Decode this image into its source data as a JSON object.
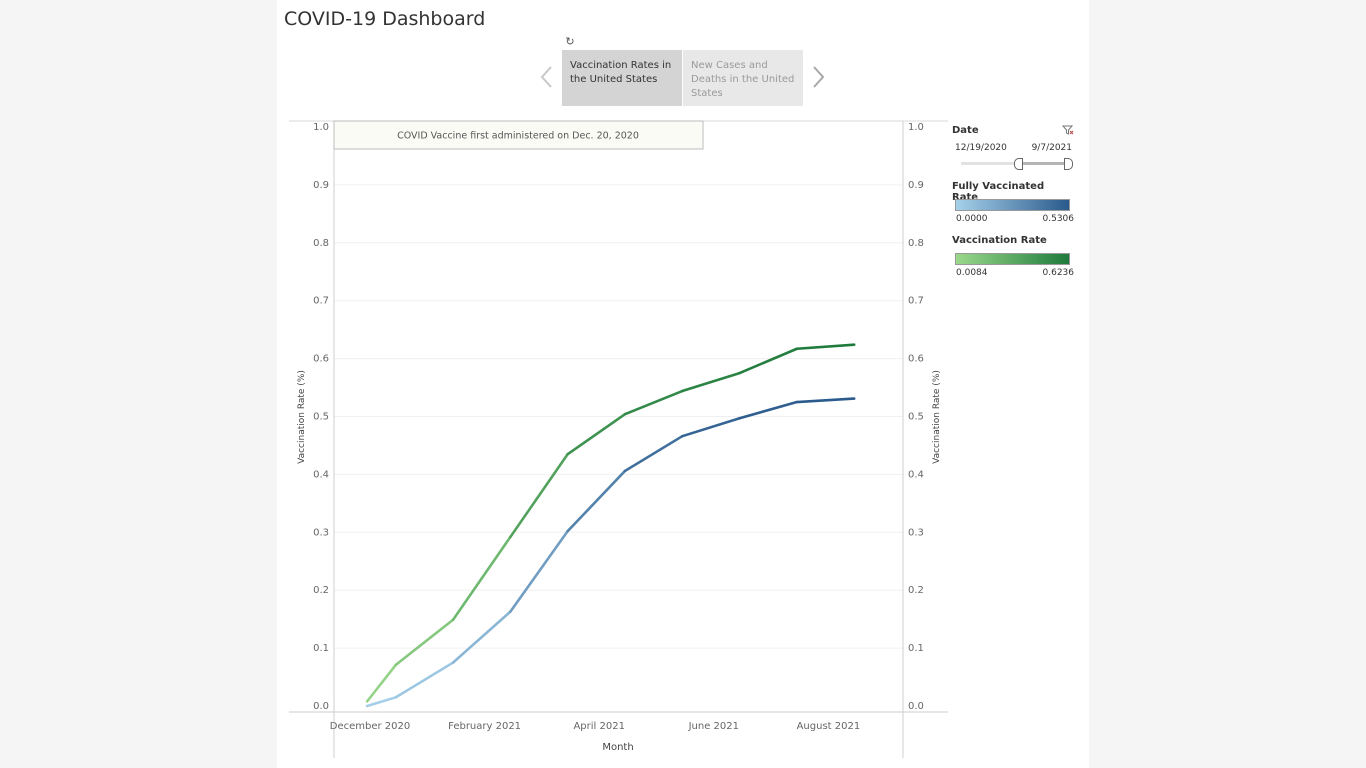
{
  "dashboard": {
    "title": "COVID-19 Dashboard",
    "story_tabs": [
      {
        "label": "Vaccination Rates in the United States",
        "active": true
      },
      {
        "label": "New Cases and Deaths in the United States",
        "active": false
      }
    ],
    "icons": {
      "revert": "revert-icon",
      "prev": "chevron-left-icon",
      "next": "chevron-right-icon",
      "clear_filter": "clear-filter-icon"
    }
  },
  "annotation": "COVID Vaccine first administered on Dec. 20, 2020",
  "filters": {
    "date": {
      "title": "Date",
      "start": "12/19/2020",
      "end": "9/7/2021"
    }
  },
  "legends": {
    "fully_vaccinated": {
      "title": "Fully Vaccinated Rate",
      "min": "0.0000",
      "max": "0.5306",
      "color_low": "#a6d1ea",
      "color_high": "#2a5a8c"
    },
    "vaccination": {
      "title": "Vaccination Rate",
      "min": "0.0084",
      "max": "0.6236",
      "color_low": "#9ad88b",
      "color_high": "#1e7a3c"
    }
  },
  "chart_data": {
    "type": "line",
    "xlabel": "Month",
    "ylabel": "Vaccination Rate (%)",
    "ylabel_right": "Vaccination Rate (%)",
    "ylim": [
      0,
      1.0
    ],
    "y_ticks": [
      "0.0",
      "0.1",
      "0.2",
      "0.3",
      "0.4",
      "0.5",
      "0.6",
      "0.7",
      "0.8",
      "0.9",
      "1.0"
    ],
    "x_ticks": [
      {
        "label": "December 2020",
        "month_index": 0
      },
      {
        "label": "February 2021",
        "month_index": 2
      },
      {
        "label": "April 2021",
        "month_index": 4
      },
      {
        "label": "June 2021",
        "month_index": 6
      },
      {
        "label": "August 2021",
        "month_index": 8
      }
    ],
    "x_months": [
      -0.05,
      0.45,
      1.45,
      2.45,
      3.45,
      4.45,
      5.45,
      6.45,
      7.45,
      8.45,
      8.95
    ],
    "series": [
      {
        "key": "vaccination",
        "values": [
          0.008,
          0.071,
          0.149,
          0.292,
          0.435,
          0.504,
          0.544,
          0.575,
          0.617,
          0.624,
          null
        ],
        "color_low": "#9ad88b",
        "color_high": "#1e7a3c"
      },
      {
        "key": "fully_vaccinated",
        "values": [
          0.0,
          0.015,
          0.075,
          0.163,
          0.302,
          0.406,
          0.466,
          0.497,
          0.525,
          0.531,
          null
        ],
        "color_low": "#a6d1ea",
        "color_high": "#2a5a8c"
      }
    ],
    "grid": true
  }
}
